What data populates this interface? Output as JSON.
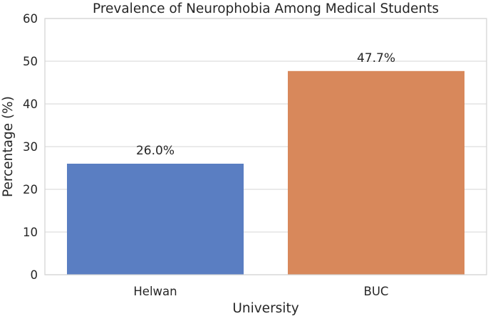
{
  "chart_data": {
    "type": "bar",
    "title": "Prevalence of Neurophobia Among Medical Students",
    "xlabel": "University",
    "ylabel": "Percentage (%)",
    "categories": [
      "Helwan",
      "BUC"
    ],
    "values": [
      26.0,
      47.7
    ],
    "data_labels": [
      "26.0%",
      "47.7%"
    ],
    "ylim": [
      0,
      60
    ],
    "yticks": [
      0,
      10,
      20,
      30,
      40,
      50,
      60
    ],
    "ytick_labels": [
      "0",
      "10",
      "20",
      "30",
      "40",
      "50",
      "60"
    ],
    "colors": [
      "#5a7ec2",
      "#d8885b"
    ],
    "grid": true,
    "legend": "none"
  }
}
